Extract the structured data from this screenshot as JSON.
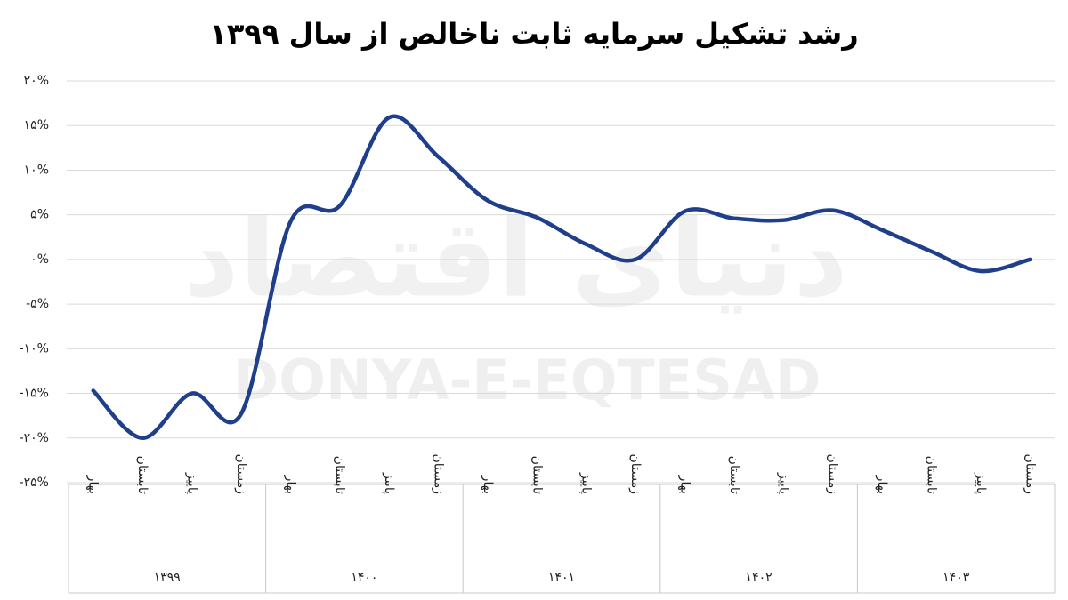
{
  "chart_data": {
    "type": "line",
    "title": "رشد تشکیل سرمایه ثابت ناخالص از سال ۱۳۹۹",
    "watermark": "DONYA-E-EQTESAD",
    "watermark_logo": "دنیای اقتصاد",
    "categories": [
      "بهار",
      "تابستان",
      "پاییز",
      "زمستان",
      "بهار",
      "تابستان",
      "پاییز",
      "زمستان",
      "بهار",
      "تابستان",
      "پاییز",
      "زمستان",
      "بهار",
      "تابستان",
      "پاییز",
      "زمستان",
      "بهار",
      "تابستان",
      "پاییز",
      "زمستان"
    ],
    "groups": [
      "۱۳۹۹",
      "۱۴۰۰",
      "۱۴۰۱",
      "۱۴۰۲",
      "۱۴۰۳"
    ],
    "values": [
      -14.7,
      -20,
      -15,
      -17.3,
      4.2,
      6.0,
      15.9,
      11.5,
      6.6,
      4.7,
      1.7,
      0,
      5.4,
      4.6,
      4.4,
      5.5,
      3.3,
      0.9,
      -1.3,
      0
    ],
    "color": "#1f3f8c",
    "ylim": [
      -25,
      20
    ],
    "yticks": [
      {
        "value": -25,
        "label": "-۲۵%"
      },
      {
        "value": -20,
        "label": "-۲۰%"
      },
      {
        "value": -15,
        "label": "-۱۵%"
      },
      {
        "value": -10,
        "label": "-۱۰%"
      },
      {
        "value": -5,
        "label": "-۵%"
      },
      {
        "value": 0,
        "label": "۰%"
      },
      {
        "value": 5,
        "label": "۵%"
      },
      {
        "value": 10,
        "label": "۱۰%"
      },
      {
        "value": 15,
        "label": "۱۵%"
      },
      {
        "value": 20,
        "label": "۲۰%"
      }
    ],
    "grid": true,
    "smooth": true
  }
}
